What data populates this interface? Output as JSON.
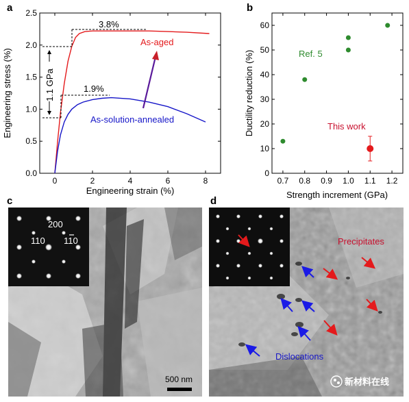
{
  "panels": {
    "a": "a",
    "b": "b",
    "c": "c",
    "d": "d"
  },
  "chart_data": [
    {
      "type": "line",
      "panel": "a",
      "xlabel": "Engineering strain (%)",
      "ylabel": "Engineering stress (%)",
      "xlim": [
        -0.8,
        8.8
      ],
      "ylim": [
        0,
        2.5
      ],
      "xticks": [
        "0",
        "2",
        "4",
        "6",
        "8"
      ],
      "yticks": [
        "0.0",
        "0.5",
        "1.0",
        "1.5",
        "2.0",
        "2.5"
      ],
      "series": [
        {
          "name": "As-aged",
          "color": "#e41a1c",
          "x": [
            0,
            0.15,
            0.3,
            0.5,
            0.7,
            0.9,
            1.1,
            1.3,
            1.6,
            2,
            2.5,
            3,
            4,
            5,
            6,
            7,
            8.2
          ],
          "y": [
            0,
            0.5,
            0.95,
            1.4,
            1.75,
            1.98,
            2.12,
            2.18,
            2.21,
            2.22,
            2.22,
            2.22,
            2.22,
            2.22,
            2.21,
            2.2,
            2.18
          ]
        },
        {
          "name": "As-solution-annealed",
          "color": "#1515c8",
          "x": [
            0,
            0.15,
            0.3,
            0.5,
            0.7,
            0.9,
            1.2,
            1.5,
            2,
            2.5,
            3,
            4,
            5,
            6,
            7,
            8
          ],
          "y": [
            0,
            0.35,
            0.6,
            0.8,
            0.92,
            1.0,
            1.07,
            1.11,
            1.15,
            1.17,
            1.18,
            1.16,
            1.11,
            1.04,
            0.93,
            0.8
          ]
        }
      ],
      "annotations": {
        "aged_label": "As-aged",
        "annealed_label": "As-solution-annealed",
        "gpa_label": "1.1 GPa",
        "strain_aged": "3.8%",
        "strain_annealed": "1.9%"
      }
    },
    {
      "type": "scatter",
      "panel": "b",
      "xlabel": "Strength increment (GPa)",
      "ylabel": "Ductility reduction (%)",
      "xlim": [
        0.65,
        1.25
      ],
      "ylim": [
        0,
        65
      ],
      "xticks": [
        "0.7",
        "0.8",
        "0.9",
        "1.0",
        "1.1",
        "1.2"
      ],
      "yticks": [
        "0",
        "10",
        "20",
        "30",
        "40",
        "50",
        "60"
      ],
      "series": [
        {
          "name": "Ref. 5",
          "color": "#2e8b2e",
          "x": [
            0.7,
            0.8,
            1.0,
            1.0,
            1.18
          ],
          "y": [
            13,
            38,
            50,
            55,
            60
          ]
        },
        {
          "name": "This work",
          "color": "#e41a1c",
          "x": [
            1.1
          ],
          "y": [
            10
          ],
          "yerr": [
            5
          ]
        }
      ]
    }
  ],
  "images": {
    "c": {
      "diffraction_labels": {
        "top": "200",
        "left": "110",
        "right": "110"
      },
      "scalebar": "500 nm"
    },
    "d": {
      "precipitates_label": "Precipitates",
      "dislocations_label": "Dislocations"
    }
  },
  "watermark": {
    "text": "新材料在线",
    "colors": {
      "red": "#e41a1c",
      "blue": "#1a3fe6"
    }
  }
}
